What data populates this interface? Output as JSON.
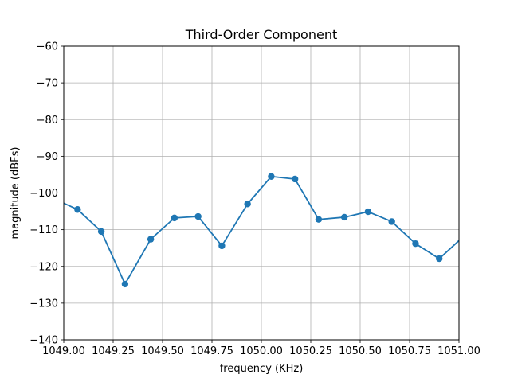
{
  "chart_data": {
    "type": "line",
    "title": "Third-Order Component",
    "xlabel": "frequency (KHz)",
    "ylabel": "magnitude (dBFs)",
    "xlim": [
      1049.0,
      1051.0
    ],
    "ylim": [
      -140,
      -60
    ],
    "xticks": [
      1049.0,
      1049.25,
      1049.5,
      1049.75,
      1050.0,
      1050.25,
      1050.5,
      1050.75,
      1051.0
    ],
    "xtick_labels": [
      "1049.00",
      "1049.25",
      "1049.50",
      "1049.75",
      "1050.00",
      "1050.25",
      "1050.50",
      "1050.75",
      "1051.00"
    ],
    "yticks": [
      -140,
      -130,
      -120,
      -110,
      -100,
      -90,
      -80,
      -70,
      -60
    ],
    "ytick_labels": [
      "−140",
      "−130",
      "−120",
      "−110",
      "−100",
      "−90",
      "−80",
      "−70",
      "−60"
    ],
    "grid": true,
    "legend": false,
    "series": [
      {
        "color": "#1f77b4",
        "marker": "circle",
        "x": [
          1048.94,
          1049.07,
          1049.19,
          1049.31,
          1049.44,
          1049.56,
          1049.68,
          1049.8,
          1049.93,
          1050.05,
          1050.17,
          1050.29,
          1050.42,
          1050.54,
          1050.66,
          1050.78,
          1050.9,
          1051.03
        ],
        "y": [
          -101.3,
          -104.5,
          -110.5,
          -124.8,
          -112.6,
          -106.8,
          -106.4,
          -114.4,
          -103.0,
          -95.5,
          -96.2,
          -107.2,
          -106.6,
          -105.1,
          -107.8,
          -113.8,
          -117.9,
          -111.5
        ]
      }
    ]
  }
}
